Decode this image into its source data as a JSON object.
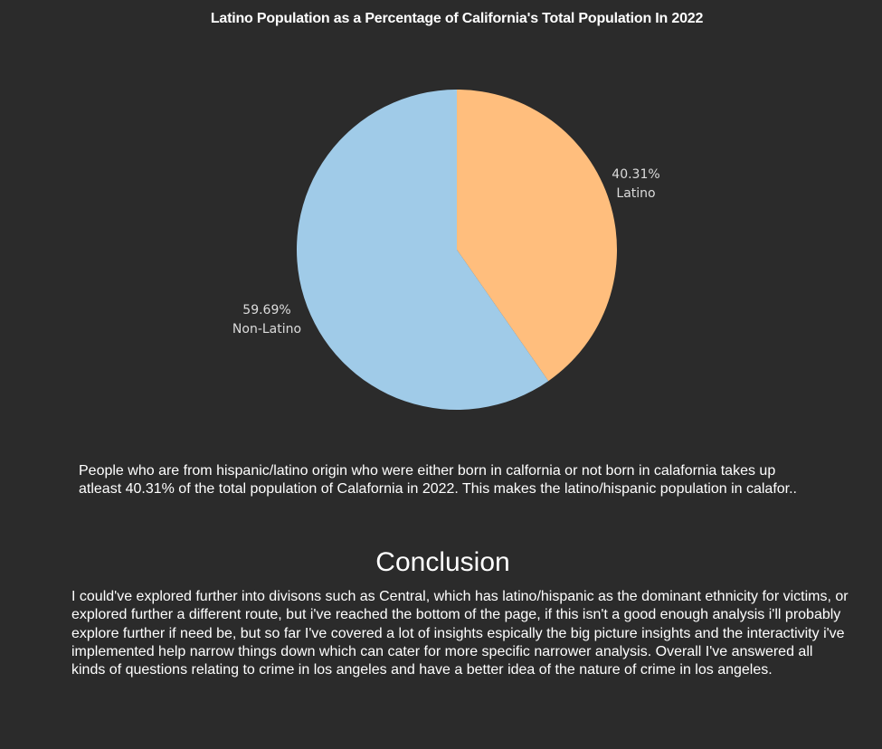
{
  "chart_data": {
    "type": "pie",
    "title": "Latino Population as a Percentage of California's Total Population In 2022",
    "slices": [
      {
        "label": "Latino",
        "value": 40.31,
        "value_label": "40.31%",
        "color": "#ffbe7d"
      },
      {
        "label": "Non-Latino",
        "value": 59.69,
        "value_label": "59.69%",
        "color": "#a0cbe8"
      }
    ],
    "start_angle": "12 o'clock",
    "direction": "clockwise"
  },
  "caption": "People who are from hispanic/latino origin who were either born in calfornia or not born in calafornia takes up\natleast 40.31% of the total population of Calafornia in 2022. This makes the latino/hispanic population in calafor..",
  "conclusion": {
    "heading": "Conclusion",
    "body": "I could've explored further into divisons such as Central, which has latino/hispanic as the dominant ethnicity for victims, or explored further a different route, but i've reached the bottom of the page, if this isn't a good enough analysis i'll probably explore further if need be, but so far I've covered a lot of insights espically the big picture insights and the interactivity i've implemented help narrow things down which can cater for more specific narrower analysis. Overall I've answered all kinds of questions relating to crime in los angeles and have a better idea of the nature of crime in los angeles."
  },
  "colors": {
    "background": "#2b2b2b",
    "text": "#ffffff",
    "label": "#dcdcdc"
  }
}
